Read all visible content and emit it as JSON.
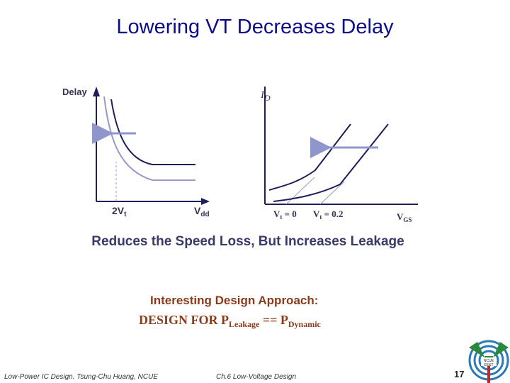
{
  "slide": {
    "title": "Lowering VT Decreases Delay",
    "caption": "Reduces the Speed Loss, But Increases Leakage",
    "approach_heading": "Interesting Design Approach:",
    "design_rule": {
      "prefix": "DESIGN FOR P",
      "sub1": "Leakage",
      "equals": " == P",
      "sub2": "Dynamic"
    }
  },
  "left_graph": {
    "y_label": "Delay",
    "x_tick_1": "2V",
    "x_tick_1_sub": "t",
    "x_tick_2": "V",
    "x_tick_2_sub": "dd"
  },
  "right_graph": {
    "y_label": "I",
    "y_label_sub": "D",
    "x_tick_1": "V",
    "x_tick_1_sub": "t",
    "x_tick_1_value": " = 0",
    "x_tick_2": "V",
    "x_tick_2_sub": "t",
    "x_tick_2_value": " = 0.2",
    "x_label": "V",
    "x_label_sub": "GS"
  },
  "footer": {
    "left": "Low-Power IC Design. Tsung-Chu Huang, NCUE",
    "center": "Ch.6 Low-Voltage Design",
    "page_number": "17",
    "logo_text_top": "NCUE",
    "logo_text_bottom": "EE&T"
  },
  "colors": {
    "title": "#0b0b8c",
    "curve_dark": "#1e1e5a",
    "curve_light": "#9a9ac8",
    "arrow": "#9aa0d0",
    "accent_text": "#8b3a1a"
  }
}
